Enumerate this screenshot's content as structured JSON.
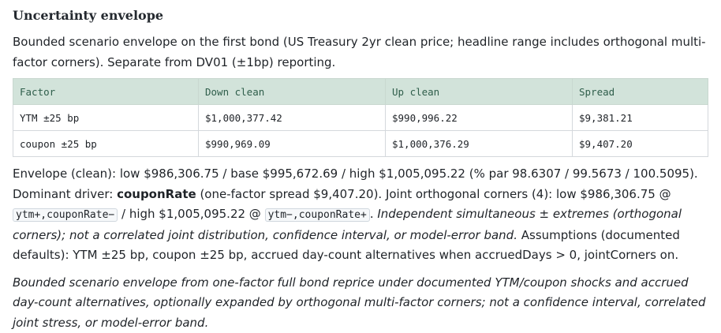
{
  "section": {
    "title": "Uncertainty envelope",
    "intro": "Bounded scenario envelope on the first bond (US Treasury 2yr clean price; headline range includes orthogonal multi-factor corners). Separate from DV01 (±1bp) reporting."
  },
  "table": {
    "headers": [
      "Factor",
      "Down clean",
      "Up clean",
      "Spread"
    ],
    "rows": [
      [
        "YTM ±25 bp",
        "$1,000,377.42",
        "$990,996.22",
        "$9,381.21"
      ],
      [
        "coupon ±25 bp",
        "$990,969.09",
        "$1,000,376.29",
        "$9,407.20"
      ]
    ]
  },
  "summary": {
    "part1": "Envelope (clean): low $986,306.75 / base $995,672.69 / high $1,005,095.22 (% par 98.6307 / 99.5673 / 100.5095). Dominant driver: ",
    "driver": "couponRate",
    "part2": " (one-factor spread $9,407.20). Joint orthogonal corners (4): low $986,306.75 @ ",
    "code_low": "ytm+,couponRate−",
    "part3": " / high $1,005,095.22 @ ",
    "code_high": "ytm−,couponRate+",
    "part4": ". ",
    "italic": "Independent simultaneous ± extremes (orthogonal corners); not a correlated joint distribution, confidence interval, or model-error band.",
    "part5": " Assumptions (documented defaults): YTM ±25 bp, coupon ±25 bp, accrued day-count alternatives when accruedDays > 0, jointCorners on."
  },
  "footnote": "Bounded scenario envelope from one-factor full bond reprice under documented YTM/coupon shocks and accrued day-count alternatives, optionally expanded by orthogonal multi-factor corners; not a confidence interval, correlated joint stress, or model-error band."
}
